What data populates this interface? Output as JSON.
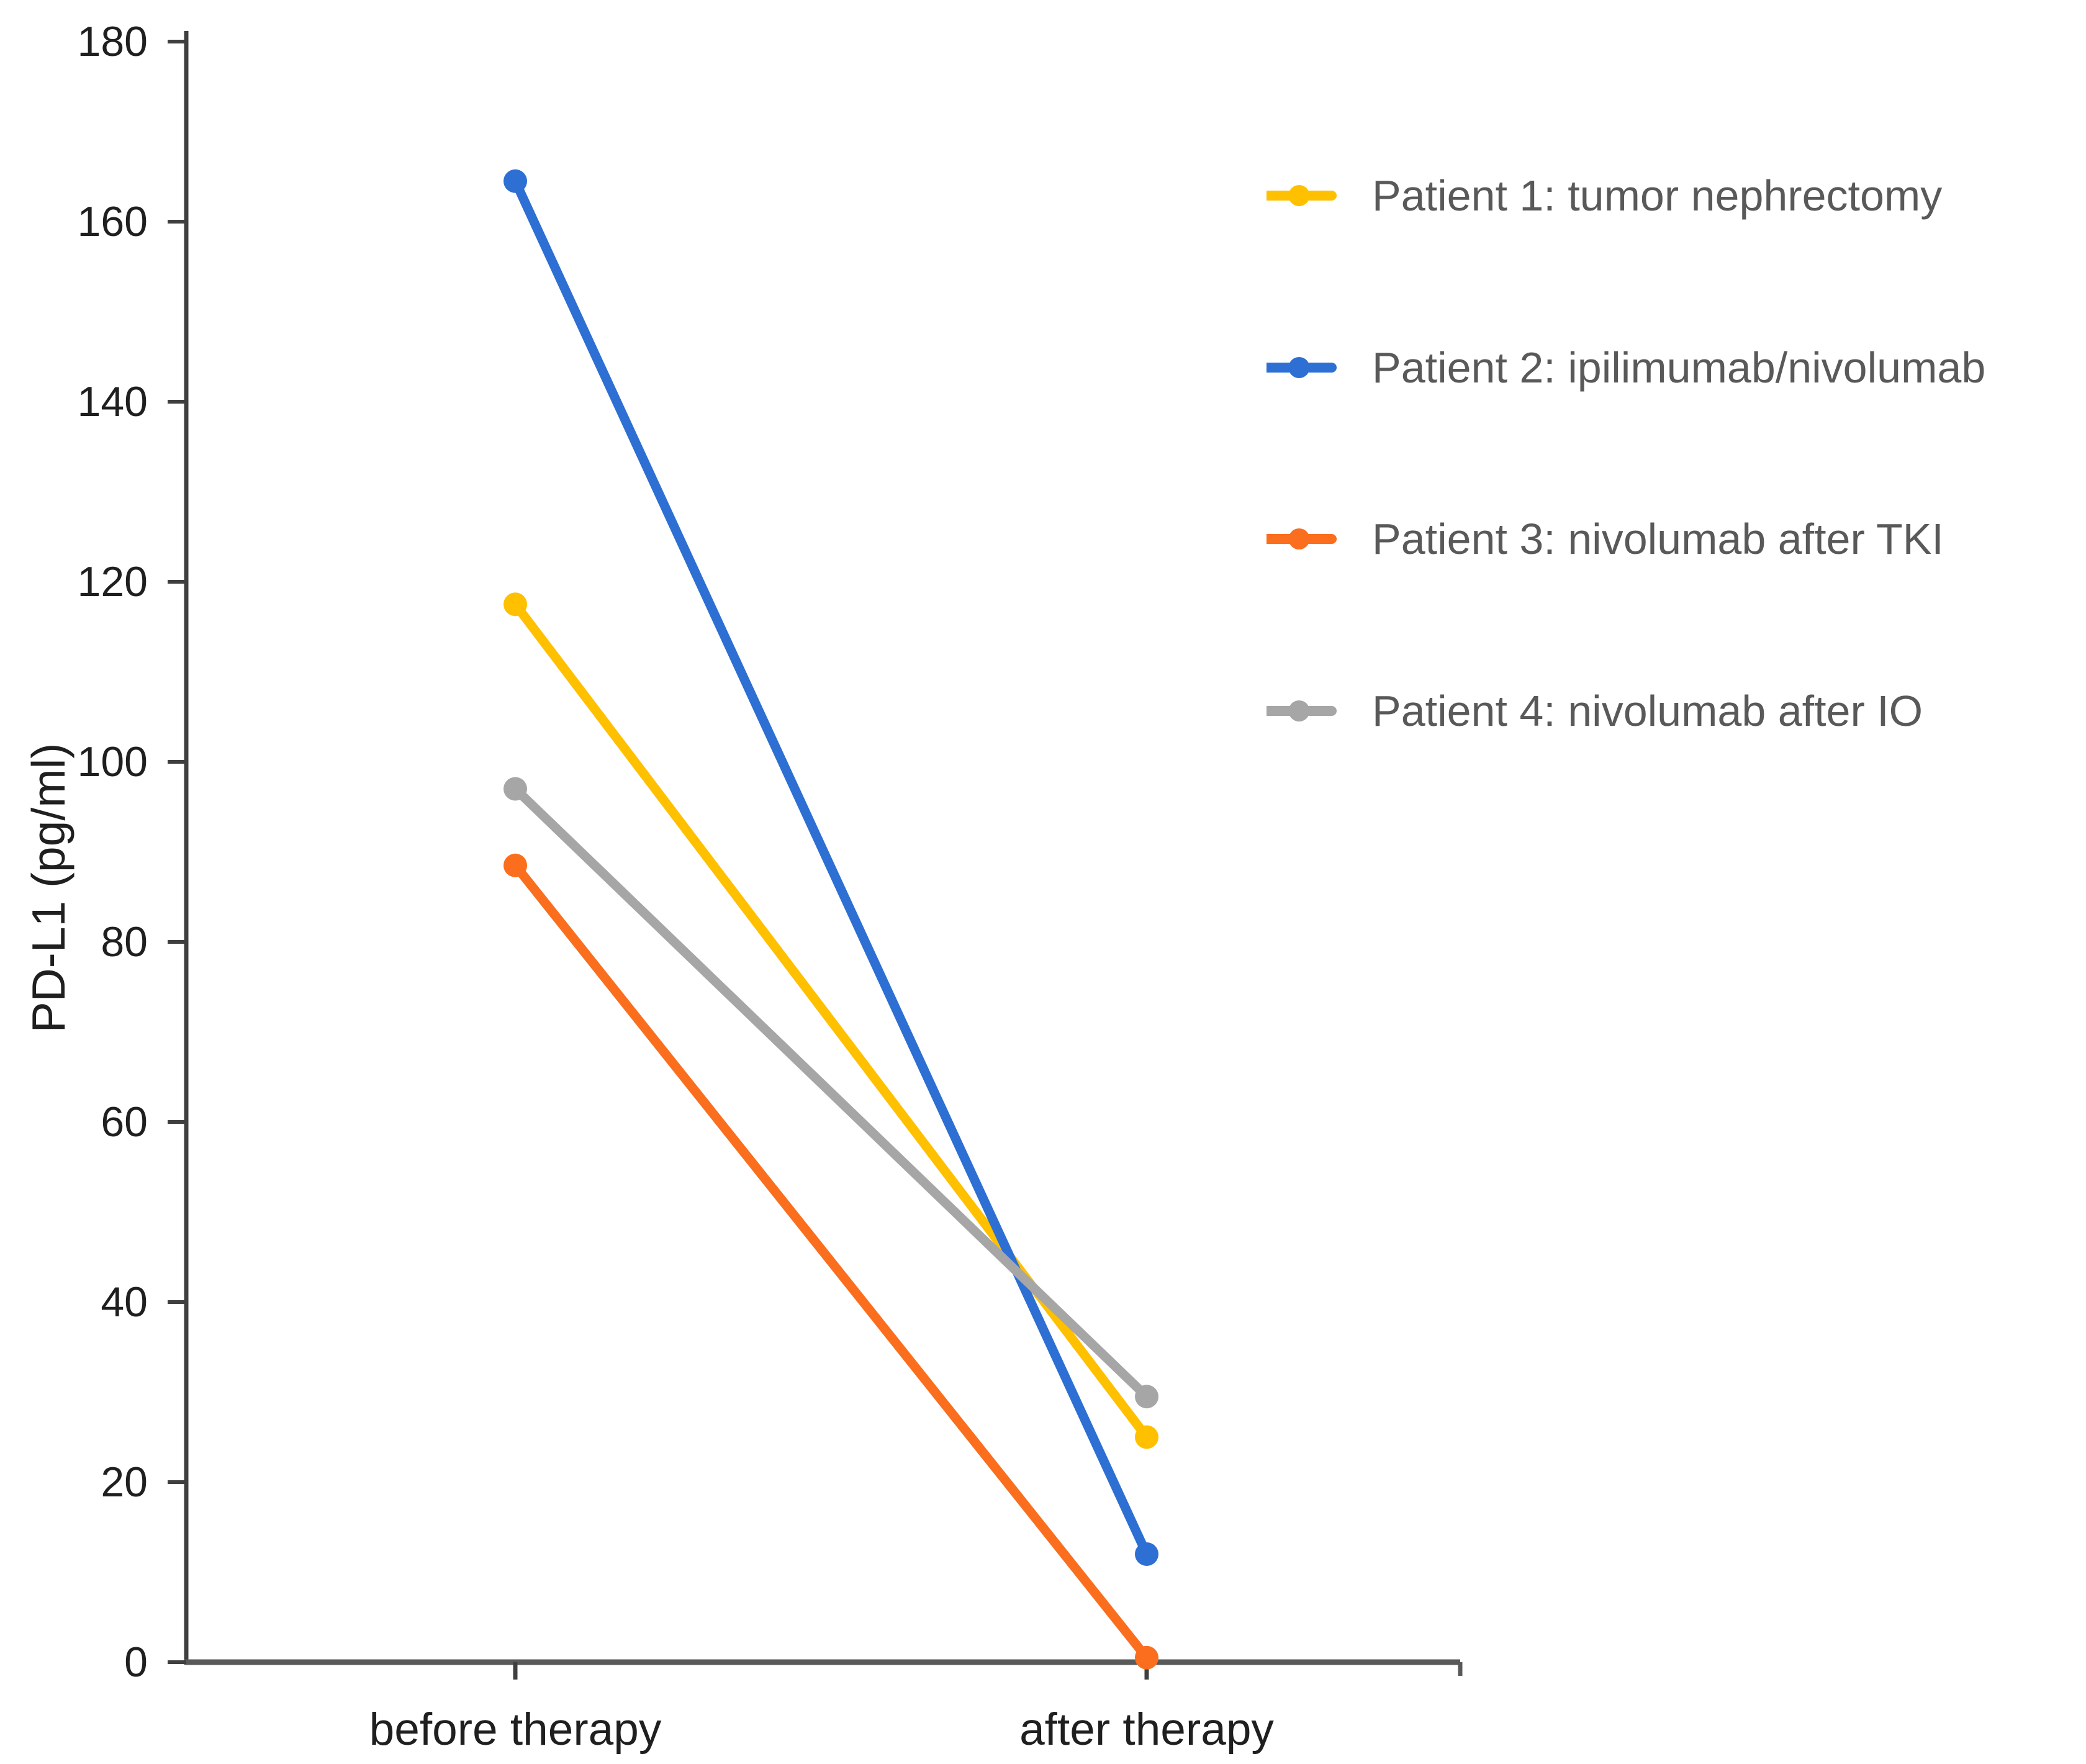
{
  "chart_data": {
    "type": "line",
    "title": "",
    "xlabel": "",
    "ylabel": "PD-L1 (pg/ml)",
    "categories": [
      "before therapy",
      "after therapy"
    ],
    "ylim": [
      0,
      180
    ],
    "ytick_step": 20,
    "yticks": [
      0,
      20,
      40,
      60,
      80,
      100,
      120,
      140,
      160,
      180
    ],
    "grid": false,
    "marker": "circle",
    "legend_position": "right",
    "series": [
      {
        "name": "Patient 1: tumor nephrectomy",
        "color": "#FFC000",
        "values": [
          117.5,
          25
        ]
      },
      {
        "name": "Patient 2: ipilimumab/nivolumab",
        "color": "#2D6FD3",
        "values": [
          164.5,
          12
        ]
      },
      {
        "name": "Patient 3: nivolumab after TKI",
        "color": "#FA6E1E",
        "values": [
          88.5,
          0.5
        ]
      },
      {
        "name": "Patient 4: nivolumab after IO",
        "color": "#A6A6A6",
        "values": [
          97,
          29.5
        ]
      }
    ]
  }
}
